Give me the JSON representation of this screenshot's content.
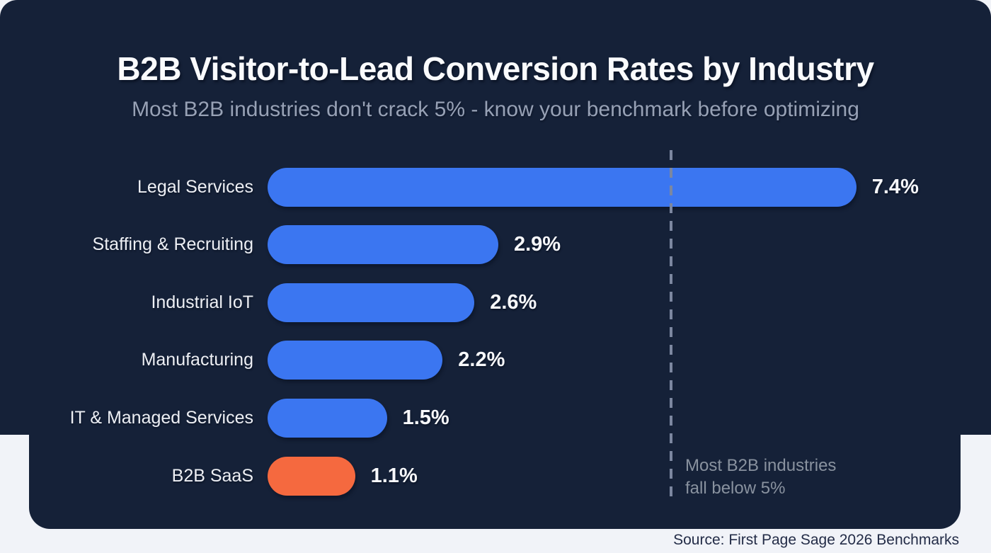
{
  "header": {
    "title": "B2B Visitor-to-Lead Conversion Rates by Industry",
    "subtitle": "Most B2B industries don't crack 5% - know your benchmark before optimizing"
  },
  "chart_data": {
    "type": "bar",
    "orientation": "horizontal",
    "title": "B2B Visitor-to-Lead Conversion Rates by Industry",
    "categories": [
      "Legal Services",
      "Staffing & Recruiting",
      "Industrial IoT",
      "Manufacturing",
      "IT & Managed Services",
      "B2B SaaS"
    ],
    "values": [
      7.4,
      2.9,
      2.6,
      2.2,
      1.5,
      1.1
    ],
    "value_labels": [
      "7.4%",
      "2.9%",
      "2.6%",
      "2.2%",
      "1.5%",
      "1.1%"
    ],
    "bar_colors": [
      "#3b76f1",
      "#3b76f1",
      "#3b76f1",
      "#3b76f1",
      "#3b76f1",
      "#f5693f"
    ],
    "xlim": [
      0,
      7.4
    ],
    "unit": "%",
    "grid": false,
    "legend": false,
    "reference_line": {
      "value": 5,
      "style": "dashed",
      "color": "#7c87a0",
      "label_line1": "Most B2B industries",
      "label_line2": "fall below 5%"
    }
  },
  "annotation": {
    "line1": "Most B2B industries",
    "line2": "fall below 5%"
  },
  "footer": {
    "source": "Source: First Page Sage 2026 Benchmarks"
  },
  "colors": {
    "card_background": "#152138",
    "page_background": "#f1f3f8",
    "bar_blue": "#3b76f1",
    "bar_orange": "#f5693f",
    "title_text": "#fafbfd",
    "subtitle_text": "#97a1b5",
    "annotation_text": "#89929f",
    "source_text": "#232c47"
  }
}
